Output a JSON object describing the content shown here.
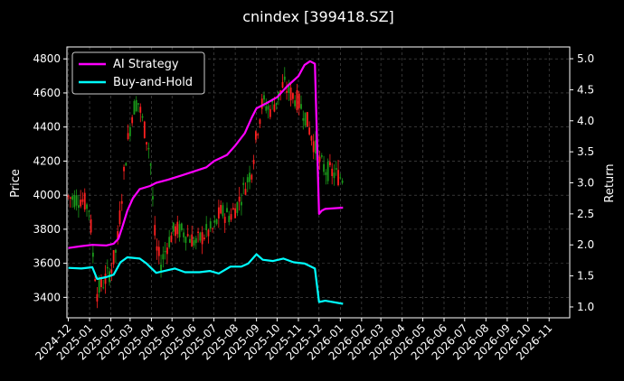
{
  "chart_data": {
    "type": "line",
    "title": "cnindex [399418.SZ]",
    "ylabel_left": "Price",
    "ylabel_right": "Return",
    "xlim": [
      "2024-11-29",
      "2026-12-01"
    ],
    "ylim_left": [
      3280,
      4870
    ],
    "ylim_right": [
      0.825,
      5.19
    ],
    "grid": true,
    "legend_position": "top-left",
    "x_ticks": [
      "2024-12",
      "2025-01",
      "2025-02",
      "2025-03",
      "2025-04",
      "2025-05",
      "2025-06",
      "2025-07",
      "2025-08",
      "2025-09",
      "2025-10",
      "2025-11",
      "2025-12",
      "2026-01",
      "2026-02",
      "2026-03",
      "2026-04",
      "2026-05",
      "2026-06",
      "2026-07",
      "2026-08",
      "2026-09",
      "2026-10",
      "2026-11"
    ],
    "y_ticks_left": [
      3400,
      3600,
      3800,
      4000,
      4200,
      4400,
      4600,
      4800
    ],
    "y_ticks_right": [
      "1.0",
      "1.5",
      "2.0",
      "2.5",
      "3.0",
      "3.5",
      "4.0",
      "4.5",
      "5.0"
    ],
    "series": [
      {
        "name": "AI Strategy",
        "axis": "right",
        "color": "#ff00ff",
        "points": [
          [
            "2024-12-01",
            1.95
          ],
          [
            "2024-12-20",
            1.98
          ],
          [
            "2025-01-05",
            2.0
          ],
          [
            "2025-01-25",
            1.99
          ],
          [
            "2025-02-05",
            2.02
          ],
          [
            "2025-02-12",
            2.1
          ],
          [
            "2025-02-18",
            2.3
          ],
          [
            "2025-02-25",
            2.55
          ],
          [
            "2025-03-05",
            2.75
          ],
          [
            "2025-03-15",
            2.9
          ],
          [
            "2025-03-30",
            2.95
          ],
          [
            "2025-04-08",
            3.0
          ],
          [
            "2025-04-25",
            3.05
          ],
          [
            "2025-05-15",
            3.12
          ],
          [
            "2025-06-01",
            3.18
          ],
          [
            "2025-06-20",
            3.25
          ],
          [
            "2025-07-01",
            3.35
          ],
          [
            "2025-07-20",
            3.45
          ],
          [
            "2025-08-01",
            3.6
          ],
          [
            "2025-08-15",
            3.8
          ],
          [
            "2025-08-25",
            4.05
          ],
          [
            "2025-09-01",
            4.2
          ],
          [
            "2025-09-15",
            4.28
          ],
          [
            "2025-10-01",
            4.38
          ],
          [
            "2025-10-15",
            4.55
          ],
          [
            "2025-11-01",
            4.72
          ],
          [
            "2025-11-10",
            4.9
          ],
          [
            "2025-11-18",
            4.96
          ],
          [
            "2025-11-25",
            4.92
          ],
          [
            "2025-12-01",
            2.5
          ],
          [
            "2025-12-05",
            2.55
          ],
          [
            "2025-12-10",
            2.58
          ],
          [
            "2026-01-05",
            2.6
          ]
        ]
      },
      {
        "name": "Buy-and-Hold",
        "axis": "right",
        "color": "#00ffff",
        "points": [
          [
            "2024-12-01",
            1.63
          ],
          [
            "2024-12-20",
            1.62
          ],
          [
            "2025-01-05",
            1.64
          ],
          [
            "2025-01-12",
            1.45
          ],
          [
            "2025-01-25",
            1.48
          ],
          [
            "2025-02-05",
            1.52
          ],
          [
            "2025-02-15",
            1.72
          ],
          [
            "2025-02-25",
            1.8
          ],
          [
            "2025-03-15",
            1.78
          ],
          [
            "2025-03-25",
            1.7
          ],
          [
            "2025-04-08",
            1.55
          ],
          [
            "2025-04-20",
            1.58
          ],
          [
            "2025-05-05",
            1.62
          ],
          [
            "2025-05-20",
            1.56
          ],
          [
            "2025-06-10",
            1.56
          ],
          [
            "2025-06-25",
            1.58
          ],
          [
            "2025-07-08",
            1.54
          ],
          [
            "2025-07-25",
            1.65
          ],
          [
            "2025-08-10",
            1.65
          ],
          [
            "2025-08-20",
            1.7
          ],
          [
            "2025-09-01",
            1.85
          ],
          [
            "2025-09-10",
            1.76
          ],
          [
            "2025-09-25",
            1.74
          ],
          [
            "2025-10-10",
            1.78
          ],
          [
            "2025-10-25",
            1.72
          ],
          [
            "2025-11-10",
            1.7
          ],
          [
            "2025-11-25",
            1.62
          ],
          [
            "2025-12-01",
            1.08
          ],
          [
            "2025-12-10",
            1.1
          ],
          [
            "2026-01-05",
            1.05
          ]
        ]
      },
      {
        "name": "Price (candles)",
        "axis": "left",
        "color": "#ff3030",
        "points": [
          [
            "2024-12-01",
            3990
          ],
          [
            "2024-12-10",
            3980
          ],
          [
            "2024-12-20",
            3980
          ],
          [
            "2025-01-01",
            3920
          ],
          [
            "2025-01-06",
            3650
          ],
          [
            "2025-01-12",
            3430
          ],
          [
            "2025-01-20",
            3480
          ],
          [
            "2025-02-01",
            3560
          ],
          [
            "2025-02-10",
            3700
          ],
          [
            "2025-02-18",
            4050
          ],
          [
            "2025-02-25",
            4300
          ],
          [
            "2025-03-05",
            4500
          ],
          [
            "2025-03-12",
            4560
          ],
          [
            "2025-03-20",
            4420
          ],
          [
            "2025-03-30",
            4250
          ],
          [
            "2025-04-07",
            3700
          ],
          [
            "2025-04-15",
            3600
          ],
          [
            "2025-04-25",
            3720
          ],
          [
            "2025-05-05",
            3800
          ],
          [
            "2025-05-20",
            3780
          ],
          [
            "2025-06-05",
            3720
          ],
          [
            "2025-06-20",
            3780
          ],
          [
            "2025-07-01",
            3800
          ],
          [
            "2025-07-10",
            3900
          ],
          [
            "2025-07-25",
            3880
          ],
          [
            "2025-08-05",
            3950
          ],
          [
            "2025-08-15",
            4050
          ],
          [
            "2025-08-25",
            4150
          ],
          [
            "2025-09-02",
            4380
          ],
          [
            "2025-09-10",
            4550
          ],
          [
            "2025-09-20",
            4500
          ],
          [
            "2025-10-01",
            4560
          ],
          [
            "2025-10-10",
            4650
          ],
          [
            "2025-10-20",
            4600
          ],
          [
            "2025-11-01",
            4550
          ],
          [
            "2025-11-10",
            4480
          ],
          [
            "2025-11-20",
            4350
          ],
          [
            "2025-12-01",
            4200
          ],
          [
            "2025-12-10",
            4150
          ],
          [
            "2026-01-05",
            4100
          ]
        ]
      }
    ]
  }
}
